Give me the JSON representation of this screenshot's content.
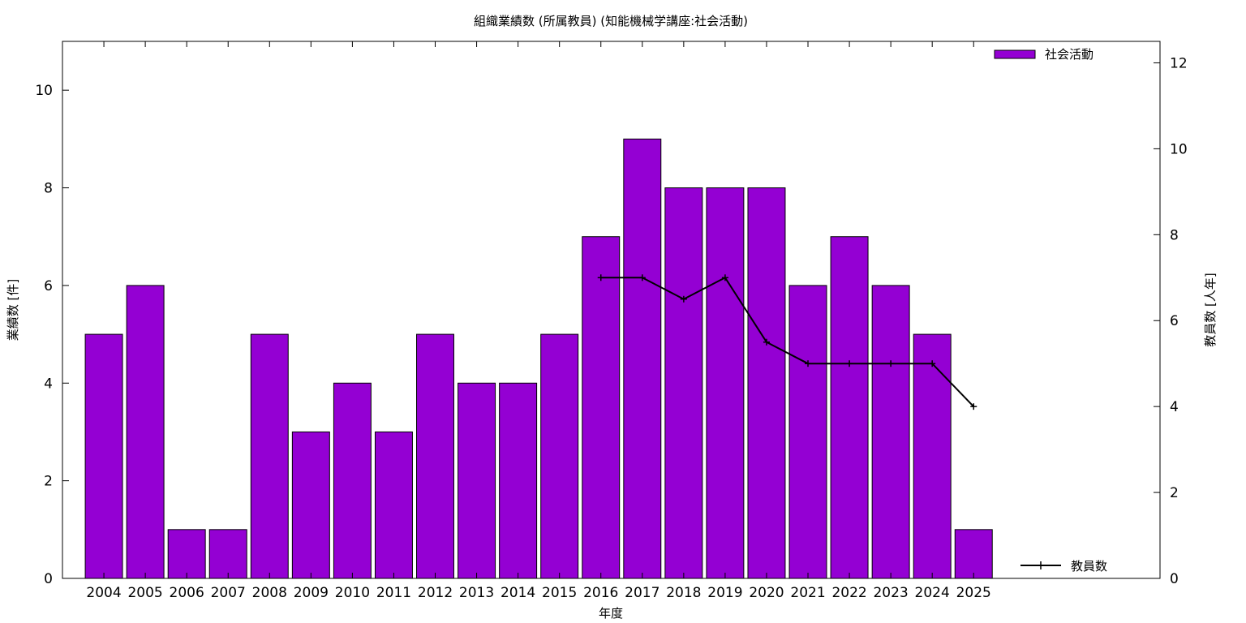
{
  "chart_data": {
    "type": "bar",
    "title": "組織業績数 (所属教員) (知能機械学講座:社会活動)",
    "xlabel": "年度",
    "ylabel": "業績数 [件]",
    "y2label": "教員数 [人年]",
    "categories": [
      "2004",
      "2005",
      "2006",
      "2007",
      "2008",
      "2009",
      "2010",
      "2011",
      "2012",
      "2013",
      "2014",
      "2015",
      "2016",
      "2017",
      "2018",
      "2019",
      "2020",
      "2021",
      "2022",
      "2023",
      "2024",
      "2025"
    ],
    "series": [
      {
        "name": "社会活動",
        "type": "bar",
        "axis": "left",
        "color": "#9400d3",
        "values": [
          5,
          6,
          1,
          1,
          5,
          3,
          4,
          3,
          5,
          4,
          4,
          5,
          7,
          9,
          8,
          8,
          8,
          6,
          7,
          6,
          5,
          1
        ]
      },
      {
        "name": "教員数",
        "type": "line",
        "axis": "right",
        "color": "#000000",
        "values": [
          null,
          null,
          null,
          null,
          null,
          null,
          null,
          null,
          null,
          null,
          null,
          null,
          7,
          7,
          6.5,
          7,
          5.5,
          5,
          5,
          5,
          5,
          4
        ]
      }
    ],
    "ylim": [
      0,
      11
    ],
    "y2lim": [
      0,
      12.5
    ],
    "yticks": [
      0,
      2,
      4,
      6,
      8,
      10
    ],
    "y2ticks": [
      0,
      2,
      4,
      6,
      8,
      10,
      12
    ],
    "legend": {
      "bar_position": "top-right",
      "line_position": "bottom-right"
    },
    "grid": false
  }
}
